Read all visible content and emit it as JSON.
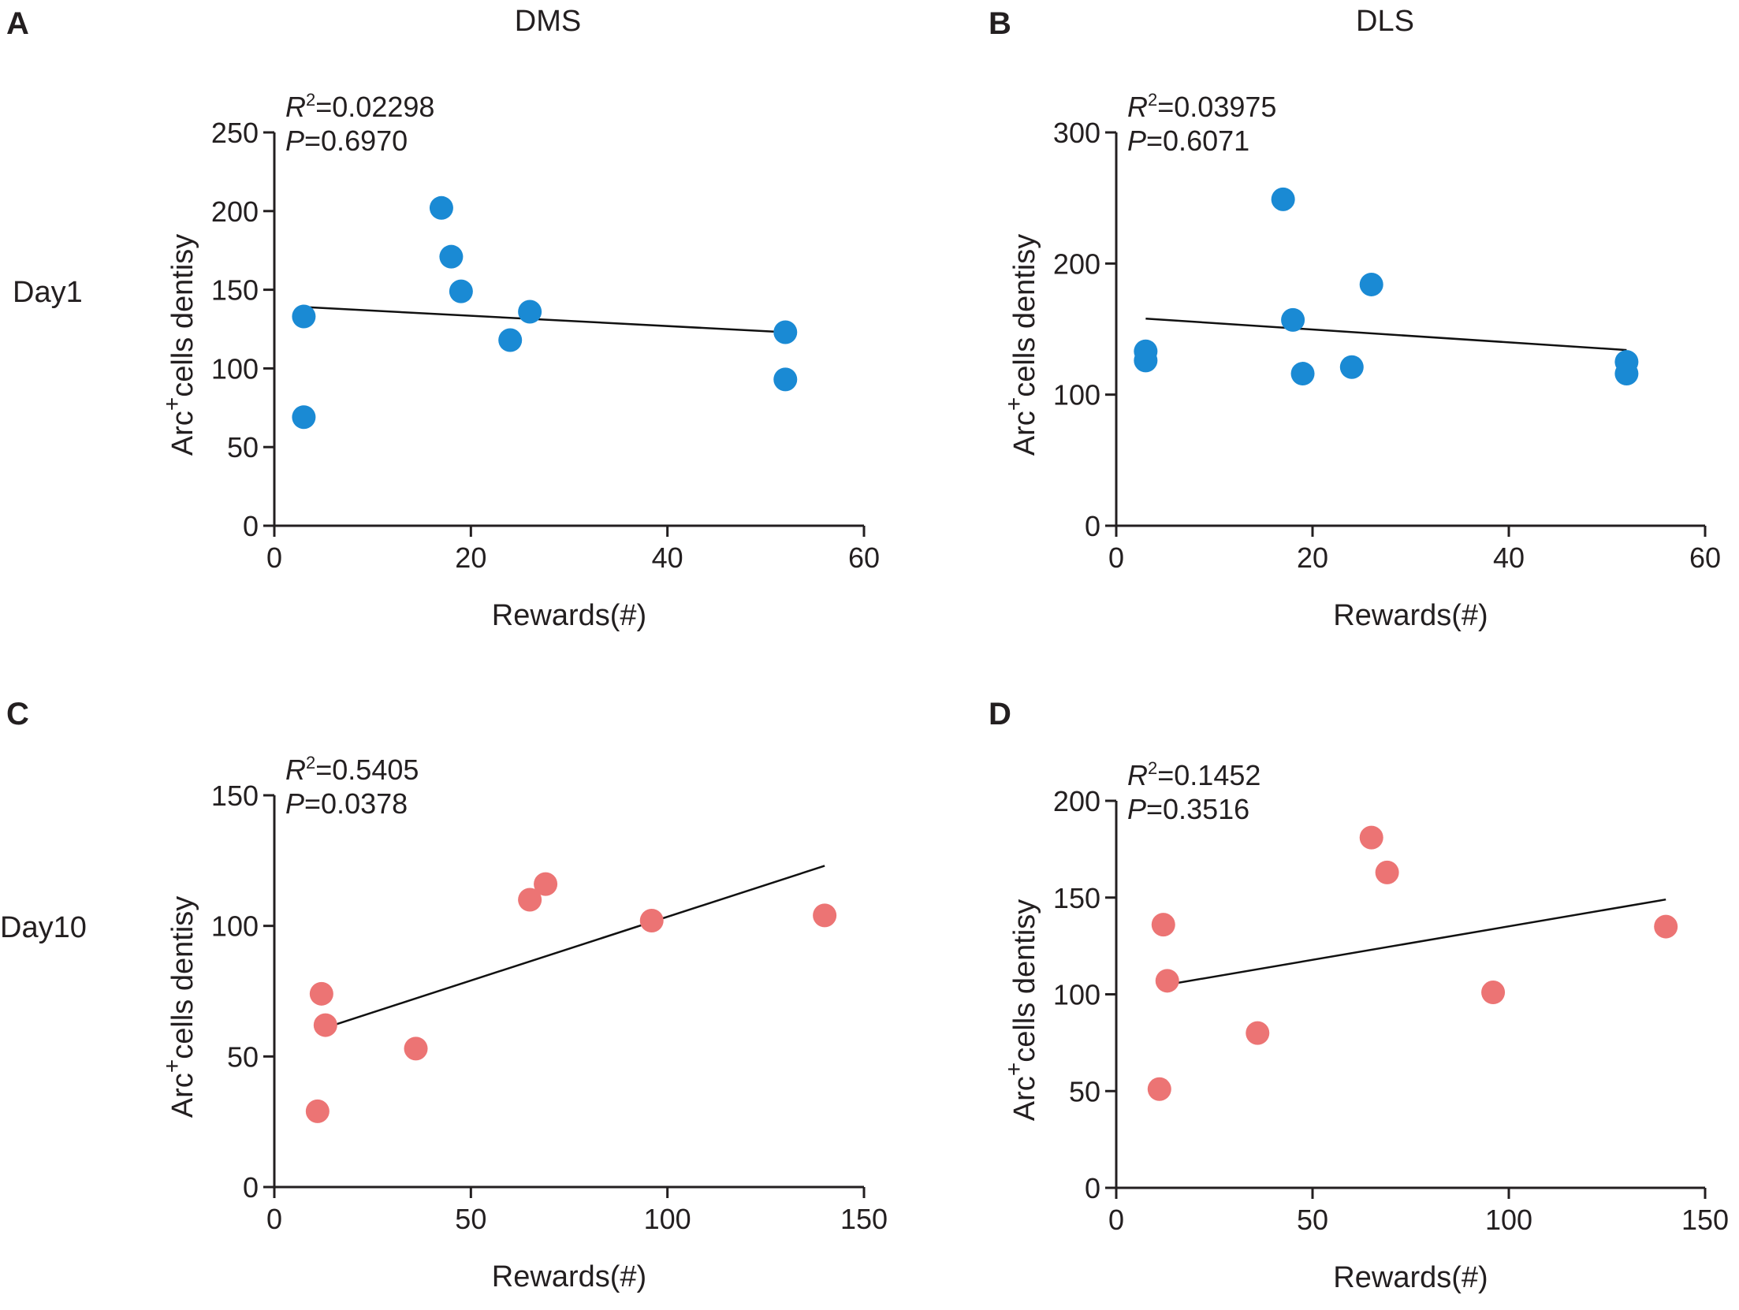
{
  "columns": [
    "DMS",
    "DLS"
  ],
  "rows": [
    "Day1",
    "Day10"
  ],
  "style": {
    "day1_color": "#1a8ad4",
    "day10_color": "#ec7474",
    "axis_color": "#231f20"
  },
  "chart_data": [
    {
      "panel": "A",
      "type": "scatter",
      "title": "DMS",
      "xlabel": "Rewards(#)",
      "ylabel_main": "Arc",
      "ylabel_sup": "+",
      "ylabel_rest": "cells dentisy",
      "xlim": [
        0,
        60
      ],
      "ylim": [
        0,
        250
      ],
      "xticks": [
        0,
        20,
        40,
        60
      ],
      "yticks": [
        0,
        50,
        100,
        150,
        200,
        250
      ],
      "stats": {
        "r2": "=0.02298",
        "p": "=0.6970"
      },
      "points": [
        [
          3,
          133
        ],
        [
          3,
          69
        ],
        [
          17,
          202
        ],
        [
          18,
          171
        ],
        [
          19,
          149
        ],
        [
          24,
          118
        ],
        [
          26,
          136
        ],
        [
          52,
          123
        ],
        [
          52,
          93
        ]
      ],
      "fit_line": [
        [
          3,
          139
        ],
        [
          52,
          123
        ]
      ]
    },
    {
      "panel": "B",
      "type": "scatter",
      "title": "DLS",
      "xlabel": "Rewards(#)",
      "ylabel_main": "Arc",
      "ylabel_sup": "+",
      "ylabel_rest": "cells dentisy",
      "xlim": [
        0,
        60
      ],
      "ylim": [
        0,
        300
      ],
      "xticks": [
        0,
        20,
        40,
        60
      ],
      "yticks": [
        0,
        100,
        200,
        300
      ],
      "stats": {
        "r2": "=0.03975",
        "p": "=0.6071"
      },
      "points": [
        [
          3,
          133
        ],
        [
          3,
          126
        ],
        [
          17,
          249
        ],
        [
          18,
          157
        ],
        [
          19,
          116
        ],
        [
          24,
          121
        ],
        [
          26,
          184
        ],
        [
          52,
          125
        ],
        [
          52,
          116
        ]
      ],
      "fit_line": [
        [
          3,
          158
        ],
        [
          52,
          134
        ]
      ]
    },
    {
      "panel": "C",
      "type": "scatter",
      "xlabel": "Rewards(#)",
      "ylabel_main": "Arc",
      "ylabel_sup": "+",
      "ylabel_rest": "cells dentisy",
      "xlim": [
        0,
        150
      ],
      "ylim": [
        0,
        150
      ],
      "xticks": [
        0,
        50,
        100,
        150
      ],
      "yticks": [
        0,
        50,
        100,
        150
      ],
      "stats": {
        "r2": "=0.5405",
        "p": "=0.0378"
      },
      "points": [
        [
          11,
          29
        ],
        [
          12,
          74
        ],
        [
          13,
          62
        ],
        [
          36,
          53
        ],
        [
          65,
          110
        ],
        [
          69,
          116
        ],
        [
          96,
          102
        ],
        [
          140,
          104
        ]
      ],
      "fit_line": [
        [
          13,
          61
        ],
        [
          140,
          123
        ]
      ]
    },
    {
      "panel": "D",
      "type": "scatter",
      "xlabel": "Rewards(#)",
      "ylabel_main": "Arc",
      "ylabel_sup": "+",
      "ylabel_rest": "cells dentisy",
      "xlim": [
        0,
        150
      ],
      "ylim": [
        0,
        200
      ],
      "xticks": [
        0,
        50,
        100,
        150
      ],
      "yticks": [
        0,
        50,
        100,
        150,
        200
      ],
      "stats": {
        "r2": "=0.1452",
        "p": "=0.3516"
      },
      "points": [
        [
          11,
          51
        ],
        [
          12,
          136
        ],
        [
          13,
          107
        ],
        [
          36,
          80
        ],
        [
          65,
          181
        ],
        [
          69,
          163
        ],
        [
          96,
          101
        ],
        [
          140,
          135
        ]
      ],
      "fit_line": [
        [
          13,
          105
        ],
        [
          140,
          149
        ]
      ]
    }
  ]
}
